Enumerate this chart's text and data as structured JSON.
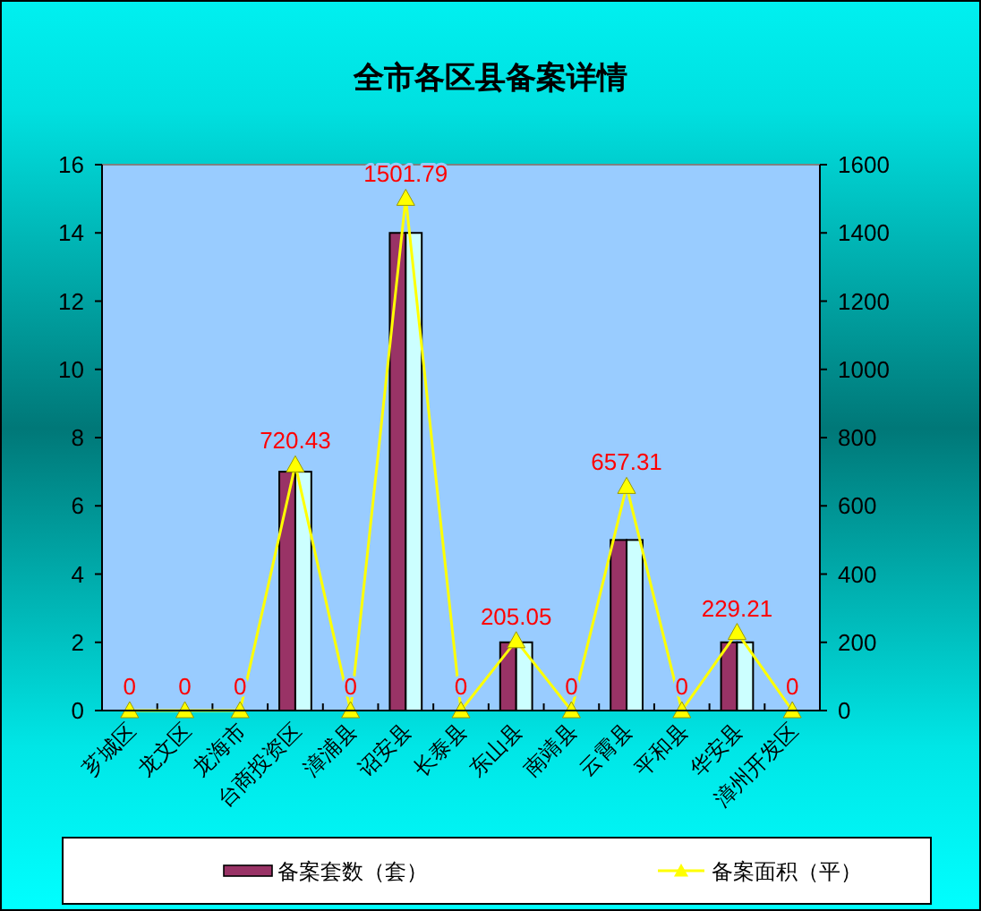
{
  "chart_data": {
    "type": "bar",
    "title": "全市各区县备案详情",
    "categories": [
      "芗城区",
      "龙文区",
      "龙海市",
      "台商投资区",
      "漳浦县",
      "诏安县",
      "长泰县",
      "东山县",
      "南靖县",
      "云霄县",
      "平和县",
      "华安县",
      "漳州开发区"
    ],
    "series": [
      {
        "name": "备案套数（套）",
        "color": "#993366",
        "values": [
          0,
          0,
          0,
          7,
          0,
          14,
          0,
          2,
          0,
          5,
          0,
          2,
          0
        ]
      },
      {
        "color": "#ccffff",
        "values": [
          0,
          0,
          0,
          7,
          0,
          14,
          0,
          2,
          0,
          5,
          0,
          2,
          0
        ]
      },
      {
        "name": "备案面积（平）",
        "type": "line",
        "axis": "y2",
        "color": "#ffff00",
        "marker": "triangle",
        "values": [
          0,
          0,
          0,
          720.43,
          0,
          1501.79,
          0,
          205.05,
          0,
          657.31,
          0,
          229.21,
          0
        ],
        "value_labels": [
          "0",
          "0",
          "0",
          "720.43",
          "0",
          "1501.79",
          "0",
          "205.05",
          "0",
          "657.31",
          "0",
          "229.21",
          "0"
        ]
      }
    ],
    "ylim": [
      0,
      16
    ],
    "yticks": [
      0,
      2,
      4,
      6,
      8,
      10,
      12,
      14,
      16
    ],
    "y2lim": [
      0,
      1600
    ],
    "y2ticks": [
      0,
      200,
      400,
      600,
      800,
      1000,
      1200,
      1400,
      1600
    ],
    "legend": "bottom"
  }
}
